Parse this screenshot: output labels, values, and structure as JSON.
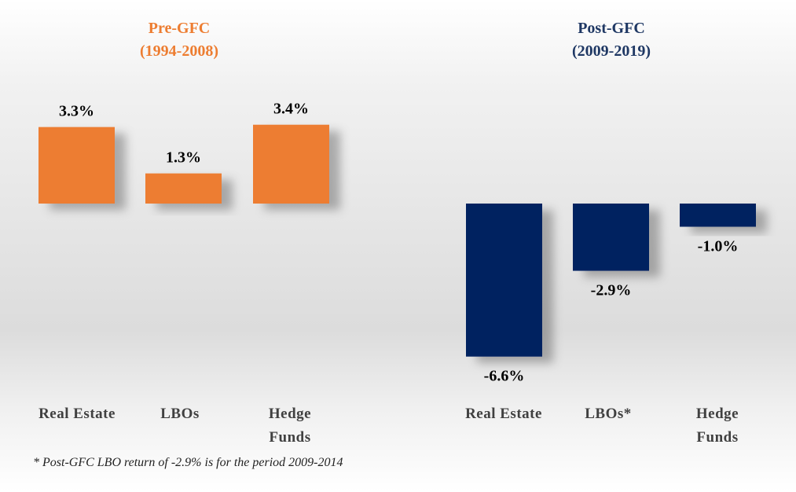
{
  "colors": {
    "pre_bar": "#ED7D31",
    "pre_title": "#ED7D31",
    "post_bar": "#002060",
    "post_title": "#1F3864",
    "label_text": "#000000",
    "category_text": "#404040"
  },
  "chart_data": [
    {
      "type": "bar",
      "title": [
        "Pre-GFC",
        "(1994-2008)"
      ],
      "categories": [
        [
          "Real Estate"
        ],
        [
          "LBOs"
        ],
        [
          "Hedge",
          "Funds"
        ]
      ],
      "values": [
        3.3,
        1.3,
        3.4
      ],
      "data_labels": [
        "3.3%",
        "1.3%",
        "3.4%"
      ],
      "value_unit": "%",
      "grid": false,
      "legend": "none"
    },
    {
      "type": "bar",
      "title": [
        "Post-GFC",
        "(2009-2019)"
      ],
      "categories": [
        [
          "Real Estate"
        ],
        [
          "LBOs*"
        ],
        [
          "Hedge",
          "Funds"
        ]
      ],
      "values": [
        -6.6,
        -2.9,
        -1.0
      ],
      "data_labels": [
        "-6.6%",
        "-2.9%",
        "-1.0%"
      ],
      "value_unit": "%",
      "grid": false,
      "legend": "none"
    }
  ],
  "footnote": "* Post-GFC LBO return of -2.9% is for the period 2009-2014"
}
